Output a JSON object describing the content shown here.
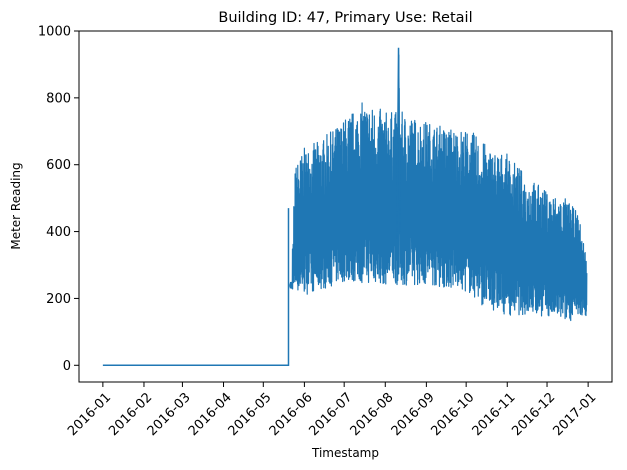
{
  "chart_data": {
    "type": "line",
    "title": "Building ID: 47, Primary Use: Retail",
    "xlabel": "Timestamp",
    "ylabel": "Meter Reading",
    "xlim": [
      "2015-12-14",
      "2017-01-19"
    ],
    "ylim": [
      -50,
      1000
    ],
    "x_ticks": [
      "2016-01",
      "2016-02",
      "2016-03",
      "2016-04",
      "2016-05",
      "2016-06",
      "2016-07",
      "2016-08",
      "2016-09",
      "2016-10",
      "2016-11",
      "2016-12",
      "2017-01"
    ],
    "y_ticks": [
      0,
      200,
      400,
      600,
      800,
      1000
    ],
    "grid": false,
    "color": "#1f77b4",
    "series": [
      {
        "name": "",
        "points": [
          [
            "2016-01-01",
            0
          ],
          [
            "2016-05-20",
            0
          ],
          [
            "2016-05-20",
            470
          ],
          [
            "2016-05-22",
            250
          ],
          [
            "2016-05-25",
            600
          ],
          [
            "2016-06-01",
            650
          ],
          [
            "2016-06-15",
            680
          ],
          [
            "2016-07-01",
            740
          ],
          [
            "2016-07-15",
            790
          ],
          [
            "2016-08-01",
            760
          ],
          [
            "2016-08-10",
            760
          ],
          [
            "2016-08-11",
            950
          ],
          [
            "2016-08-12",
            760
          ],
          [
            "2016-08-25",
            740
          ],
          [
            "2016-09-10",
            720
          ],
          [
            "2016-09-25",
            710
          ],
          [
            "2016-10-05",
            700
          ],
          [
            "2016-10-10",
            680
          ],
          [
            "2016-10-20",
            650
          ],
          [
            "2016-11-01",
            630
          ],
          [
            "2016-11-15",
            570
          ],
          [
            "2016-12-01",
            520
          ],
          [
            "2016-12-15",
            500
          ],
          [
            "2016-12-25",
            450
          ],
          [
            "2016-12-31",
            300
          ]
        ],
        "daily_min": [
          [
            "2016-05-21",
            230
          ],
          [
            "2016-06-01",
            210
          ],
          [
            "2016-07-01",
            250
          ],
          [
            "2016-08-01",
            240
          ],
          [
            "2016-09-01",
            240
          ],
          [
            "2016-10-01",
            220
          ],
          [
            "2016-10-15",
            170
          ],
          [
            "2016-11-01",
            150
          ],
          [
            "2016-11-15",
            150
          ],
          [
            "2016-12-01",
            145
          ],
          [
            "2016-12-15",
            130
          ],
          [
            "2016-12-31",
            150
          ]
        ]
      }
    ]
  }
}
